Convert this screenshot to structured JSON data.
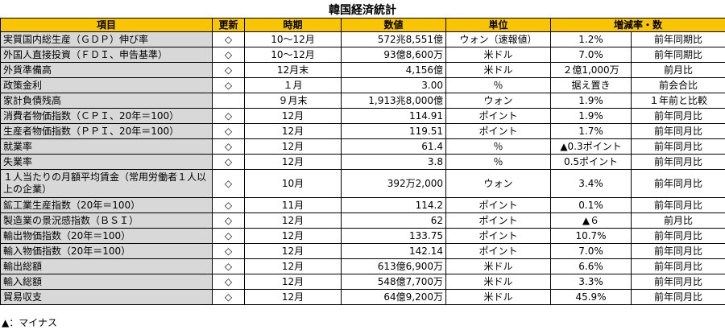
{
  "title": "韓国経済統計",
  "headers": [
    "項目",
    "更新",
    "時期",
    "数値",
    "単位",
    "増減率・数"
  ],
  "rows": [
    {
      "item": "実質国内総生産（ＧＤＰ）伸び率",
      "update": "◇",
      "period": "10〜12月",
      "value": "572兆8,551億",
      "unit": "ウォン（速報値）",
      "rate": "1.2%",
      "note": "前年同期比"
    },
    {
      "item": "外国人直接投資（ＦＤＩ、申告基準）",
      "update": "◇",
      "period": "10〜12月",
      "value": "93億8,600万",
      "unit": "米ドル",
      "rate": "7.0%",
      "note": "前年同期比"
    },
    {
      "item": "外貨準備高",
      "update": "◇",
      "period": "12月末",
      "value": "4,156億",
      "unit": "米ドル",
      "rate": "２億1,000万",
      "note": "前月比"
    },
    {
      "item": "政策金利",
      "update": "◇",
      "period": "１月",
      "value": "3.00",
      "unit": "％",
      "rate": "据え置き",
      "note": "前会合比"
    },
    {
      "item": "家計負債残高",
      "update": "",
      "period": "９月末",
      "value": "1,913兆8,000億",
      "unit": "ウォン",
      "rate": "1.9%",
      "note": "１年前と比較"
    },
    {
      "item": "消費者物価指数（ＣＰＩ、20年＝100）",
      "update": "◇",
      "period": "12月",
      "value": "114.91",
      "unit": "ポイント",
      "rate": "1.9%",
      "note": "前年同月比"
    },
    {
      "item": "生産者物価指数（ＰＰＩ、20年＝100）",
      "update": "◇",
      "period": "12月",
      "value": "119.51",
      "unit": "ポイント",
      "rate": "1.7%",
      "note": "前年同月比"
    },
    {
      "item": "就業率",
      "update": "◇",
      "period": "12月",
      "value": "61.4",
      "unit": "％",
      "rate": "▲0.3ポイント",
      "note": "前年同月比"
    },
    {
      "item": "失業率",
      "update": "◇",
      "period": "12月",
      "value": "3.8",
      "unit": "％",
      "rate": "0.5ポイント",
      "note": "前年同月比"
    },
    {
      "item": "１人当たりの月額平均賃金（常用労働者１人以上の企業）",
      "update": "◇",
      "period": "10月",
      "value": "392万2,000",
      "unit": "ウォン",
      "rate": "3.4%",
      "note": "前年同月比",
      "tall": true
    },
    {
      "item": "鉱工業生産指数（20年＝100）",
      "update": "◇",
      "period": "11月",
      "value": "114.2",
      "unit": "ポイント",
      "rate": "0.1%",
      "note": "前年同月比"
    },
    {
      "item": "製造業の景況感指数（ＢＳＩ）",
      "update": "◇",
      "period": "12月",
      "value": "62",
      "unit": "ポイント",
      "rate": "▲６",
      "note": "前月比"
    },
    {
      "item": "輸出物価指数（20年＝100）",
      "update": "◇",
      "period": "12月",
      "value": "133.75",
      "unit": "ポイント",
      "rate": "10.7%",
      "note": "前年同月比"
    },
    {
      "item": "輸入物価指数（20年＝100）",
      "update": "◇",
      "period": "12月",
      "value": "142.14",
      "unit": "ポイント",
      "rate": "7.0%",
      "note": "前年同月比"
    },
    {
      "item": "輸出総額",
      "update": "◇",
      "period": "12月",
      "value": "613億6,900万",
      "unit": "米ドル",
      "rate": "6.6%",
      "note": "前年同月比"
    },
    {
      "item": "輸入総額",
      "update": "◇",
      "period": "12月",
      "value": "548億7,700万",
      "unit": "米ドル",
      "rate": "3.3%",
      "note": "前年同月比"
    },
    {
      "item": "貿易収支",
      "update": "◇",
      "period": "12月",
      "value": "64億9,200万",
      "unit": "米ドル",
      "rate": "45.9%",
      "note": "前年同月比"
    }
  ],
  "footnote": "▲：マイナス",
  "colors": {
    "header_bg": "#f9c400",
    "item_bg": "#d8d8d8"
  }
}
